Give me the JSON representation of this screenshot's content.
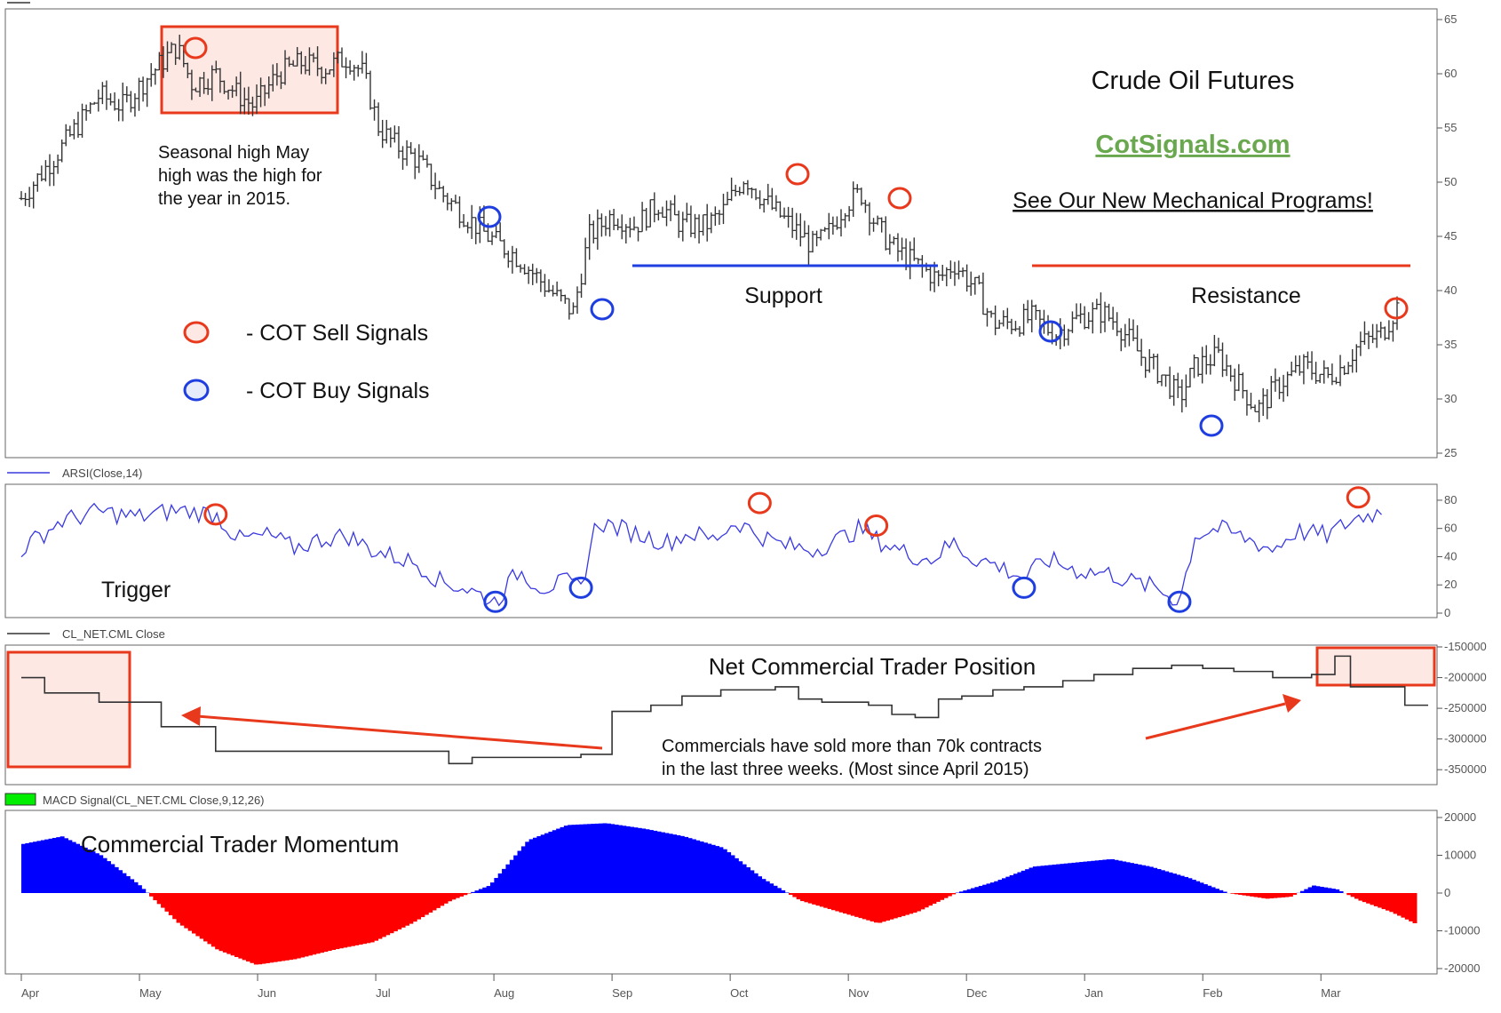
{
  "colors": {
    "price": "#333333",
    "rsi": "#3a3ae0",
    "cml": "#333333",
    "macd_pos": "#0000ff",
    "macd_neg": "#ff0000",
    "sell_signal": "#e8391d",
    "buy_signal": "#1f3ee0",
    "highlight_fill": "#fde8e4",
    "support_line": "#1f3ee0",
    "resistance_line": "#e8391d",
    "cotsignals_green": "#6aa84f",
    "macd_legend_green": "#00ee00"
  },
  "annotations": {
    "title": "Crude Oil Futures",
    "site": "CotSignals.com",
    "promo": "See Our New Mechanical Programs!",
    "seasonal_note": [
      "Seasonal high May",
      "high was the high for",
      "the year in 2015."
    ],
    "support": "Support",
    "resistance": "Resistance",
    "sell_legend": "- COT Sell Signals",
    "buy_legend": "- COT Buy Signals",
    "trigger": "Trigger",
    "net_position": "Net Commercial Trader Position",
    "commercials_note": [
      "Commercials have sold more than 70k contracts",
      "in the last three weeks. (Most since April 2015)"
    ],
    "momentum": "Commercial Trader Momentum"
  },
  "chart_data": [
    {
      "type": "bar",
      "subtype": "ohlc",
      "panel": "price",
      "ylim": [
        25,
        65
      ],
      "yticks": [
        "65",
        "60",
        "55",
        "50",
        "45",
        "40",
        "35",
        "30",
        "25"
      ],
      "x": [
        "Apr",
        "May",
        "Jun",
        "Jul",
        "Aug",
        "Sep",
        "Oct",
        "Nov",
        "Dec",
        "Jan",
        "Feb",
        "Mar"
      ],
      "series": [
        {
          "values": [
            [
              0,
              48.5
            ],
            [
              0.5,
              53
            ],
            [
              1,
              58
            ],
            [
              1.3,
              57
            ],
            [
              1.6,
              59.5
            ],
            [
              1.8,
              61
            ],
            [
              2,
              62.5
            ],
            [
              2.2,
              59
            ],
            [
              2.5,
              60
            ],
            [
              2.8,
              58
            ],
            [
              3,
              57
            ],
            [
              3.3,
              60
            ],
            [
              3.6,
              61
            ],
            [
              3.9,
              60.5
            ],
            [
              4.2,
              61.5
            ],
            [
              4.4,
              60
            ],
            [
              4.6,
              55
            ],
            [
              4.8,
              53.5
            ],
            [
              5.1,
              52
            ],
            [
              5.4,
              49
            ],
            [
              5.7,
              47
            ],
            [
              6,
              45
            ],
            [
              6.4,
              43
            ],
            [
              6.8,
              40
            ],
            [
              7.1,
              38
            ],
            [
              7.3,
              45
            ],
            [
              7.6,
              47
            ],
            [
              7.9,
              46
            ],
            [
              8.2,
              48
            ],
            [
              8.5,
              46
            ],
            [
              8.8,
              46
            ],
            [
              9,
              47
            ],
            [
              9.3,
              50.5
            ],
            [
              9.6,
              48
            ],
            [
              9.9,
              46
            ],
            [
              10.2,
              44
            ],
            [
              10.4,
              45.5
            ],
            [
              10.6,
              48
            ],
            [
              10.8,
              49
            ],
            [
              11,
              46
            ],
            [
              11.2,
              44
            ],
            [
              11.5,
              42.5
            ],
            [
              11.8,
              41
            ],
            [
              12,
              42.5
            ],
            [
              12.3,
              40
            ],
            [
              12.5,
              37
            ],
            [
              12.8,
              37
            ],
            [
              13,
              37.5
            ],
            [
              13.3,
              36
            ],
            [
              13.6,
              37.5
            ],
            [
              13.9,
              38
            ],
            [
              14.1,
              37
            ],
            [
              14.4,
              34
            ],
            [
              14.7,
              32
            ],
            [
              14.9,
              30
            ],
            [
              15.1,
              33
            ],
            [
              15.4,
              34
            ],
            [
              15.7,
              31
            ],
            [
              15.9,
              29
            ],
            [
              16.2,
              31.5
            ],
            [
              16.5,
              33
            ],
            [
              16.8,
              32
            ],
            [
              17,
              33
            ],
            [
              17.2,
              35
            ],
            [
              17.5,
              36
            ],
            [
              17.7,
              38.5
            ]
          ]
        }
      ]
    },
    {
      "type": "line",
      "panel": "rsi",
      "legend": "ARSI(Close,14)",
      "ylim": [
        0,
        85
      ],
      "yticks": [
        "80",
        "60",
        "40",
        "20",
        "0"
      ],
      "series": [
        {
          "name": "ARSI(Close,14)",
          "values": [
            [
              0,
              45
            ],
            [
              0.5,
              65
            ],
            [
              1,
              72
            ],
            [
              1.5,
              68
            ],
            [
              2,
              73
            ],
            [
              2.5,
              70
            ],
            [
              2.8,
              52
            ],
            [
              3.2,
              55
            ],
            [
              3.5,
              46
            ],
            [
              3.9,
              53
            ],
            [
              4.2,
              55
            ],
            [
              4.5,
              45
            ],
            [
              4.8,
              40
            ],
            [
              5.1,
              35
            ],
            [
              5.4,
              22
            ],
            [
              5.7,
              18
            ],
            [
              6.1,
              8
            ],
            [
              6.4,
              30
            ],
            [
              6.7,
              18
            ],
            [
              7,
              22
            ],
            [
              7.2,
              18
            ],
            [
              7.4,
              65
            ],
            [
              7.7,
              60
            ],
            [
              8,
              55
            ],
            [
              8.3,
              50
            ],
            [
              8.6,
              57
            ],
            [
              8.9,
              52
            ],
            [
              9.2,
              65
            ],
            [
              9.5,
              55
            ],
            [
              9.8,
              48
            ],
            [
              10.2,
              45
            ],
            [
              10.5,
              52
            ],
            [
              10.8,
              60
            ],
            [
              11,
              52
            ],
            [
              11.4,
              42
            ],
            [
              11.7,
              38
            ],
            [
              12,
              50
            ],
            [
              12.2,
              40
            ],
            [
              12.5,
              35
            ],
            [
              12.9,
              25
            ],
            [
              13.2,
              38
            ],
            [
              13.6,
              30
            ],
            [
              14,
              28
            ],
            [
              14.3,
              22
            ],
            [
              14.6,
              18
            ],
            [
              14.9,
              8
            ],
            [
              15.1,
              55
            ],
            [
              15.4,
              60
            ],
            [
              15.8,
              52
            ],
            [
              16.1,
              45
            ],
            [
              16.4,
              58
            ],
            [
              16.8,
              55
            ],
            [
              17,
              62
            ],
            [
              17.2,
              68
            ],
            [
              17.5,
              72
            ]
          ]
        }
      ],
      "signals": {
        "sell": [
          [
            2.5,
            70
          ],
          [
            9.5,
            78
          ],
          [
            11,
            62
          ],
          [
            17.2,
            82
          ]
        ],
        "buy": [
          [
            6.1,
            8
          ],
          [
            7.2,
            18
          ],
          [
            12.9,
            18
          ],
          [
            14.9,
            8
          ]
        ]
      }
    },
    {
      "type": "line",
      "panel": "net_position",
      "legend": "CL_NET.CML Close",
      "ylim": [
        -370000,
        -150000
      ],
      "yticks": [
        "-150000",
        "-200000",
        "-250000",
        "-300000",
        "-350000"
      ],
      "series": [
        {
          "name": "CL_NET.CML Close",
          "values": [
            [
              0,
              -200000
            ],
            [
              0.3,
              -225000
            ],
            [
              0.8,
              -225000
            ],
            [
              1,
              -240000
            ],
            [
              1.5,
              -240000
            ],
            [
              1.8,
              -280000
            ],
            [
              2.2,
              -280000
            ],
            [
              2.5,
              -320000
            ],
            [
              4.5,
              -320000
            ],
            [
              5.5,
              -340000
            ],
            [
              5.8,
              -330000
            ],
            [
              6.2,
              -330000
            ],
            [
              6.8,
              -330000
            ],
            [
              7.2,
              -325000
            ],
            [
              7.6,
              -255000
            ],
            [
              8.1,
              -245000
            ],
            [
              8.5,
              -230000
            ],
            [
              9,
              -220000
            ],
            [
              9.7,
              -215000
            ],
            [
              10,
              -235000
            ],
            [
              10.3,
              -240000
            ],
            [
              10.9,
              -245000
            ],
            [
              11.2,
              -260000
            ],
            [
              11.5,
              -265000
            ],
            [
              11.8,
              -235000
            ],
            [
              12.1,
              -230000
            ],
            [
              12.5,
              -220000
            ],
            [
              12.9,
              -215000
            ],
            [
              13.4,
              -205000
            ],
            [
              13.8,
              -195000
            ],
            [
              14.3,
              -185000
            ],
            [
              14.8,
              -180000
            ],
            [
              15.2,
              -185000
            ],
            [
              15.6,
              -190000
            ],
            [
              16.1,
              -200000
            ],
            [
              16.6,
              -195000
            ],
            [
              16.9,
              -165000
            ],
            [
              17.1,
              -215000
            ],
            [
              17.5,
              -215000
            ],
            [
              17.8,
              -245000
            ],
            [
              18.1,
              -245000
            ]
          ]
        }
      ]
    },
    {
      "type": "area",
      "panel": "macd",
      "legend": "MACD Signal(CL_NET.CML Close,9,12,26)",
      "ylim": [
        -20000,
        20000
      ],
      "yticks": [
        "20000",
        "10000",
        "0",
        "-10000",
        "-20000"
      ],
      "series": [
        {
          "name": "MACD Signal(CL_NET.CML Close,9,12,26)",
          "values": [
            [
              0,
              13000
            ],
            [
              0.5,
              15000
            ],
            [
              1,
              10000
            ],
            [
              1.5,
              2000
            ],
            [
              2,
              -8000
            ],
            [
              2.5,
              -15000
            ],
            [
              3,
              -19000
            ],
            [
              3.5,
              -17500
            ],
            [
              4,
              -15000
            ],
            [
              4.5,
              -13000
            ],
            [
              5,
              -8000
            ],
            [
              5.5,
              -2000
            ],
            [
              6,
              2000
            ],
            [
              6.5,
              14000
            ],
            [
              7,
              18000
            ],
            [
              7.5,
              18500
            ],
            [
              8,
              17000
            ],
            [
              8.5,
              15000
            ],
            [
              9,
              12000
            ],
            [
              9.5,
              4000
            ],
            [
              10,
              -2000
            ],
            [
              10.5,
              -5000
            ],
            [
              11,
              -8000
            ],
            [
              11.5,
              -5000
            ],
            [
              12,
              0
            ],
            [
              12.5,
              3000
            ],
            [
              13,
              7000
            ],
            [
              13.5,
              8000
            ],
            [
              14,
              9000
            ],
            [
              14.5,
              7000
            ],
            [
              15,
              4000
            ],
            [
              15.5,
              0
            ],
            [
              16,
              -1500
            ],
            [
              16.3,
              -1000
            ],
            [
              16.6,
              2000
            ],
            [
              16.9,
              1000
            ],
            [
              17.2,
              -2000
            ],
            [
              17.6,
              -5000
            ],
            [
              17.9,
              -8000
            ]
          ]
        }
      ]
    }
  ]
}
